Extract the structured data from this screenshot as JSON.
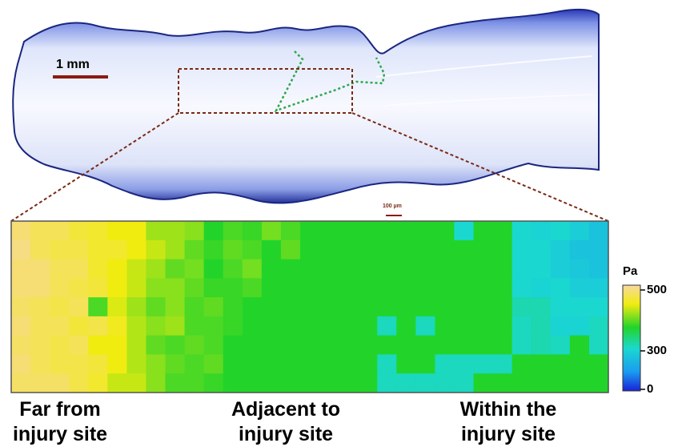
{
  "figure": {
    "scale_bar_main": "1 mm",
    "scale_bar_inset": "100 µm",
    "colorbar": {
      "unit": "Pa",
      "ticks": [
        "500",
        "300",
        "0"
      ],
      "min": 0,
      "max": 500
    },
    "region_labels": [
      {
        "line1": "Far from",
        "line2": "injury site"
      },
      {
        "line1": "Adjacent to",
        "line2": "injury site"
      },
      {
        "line1": "Within the",
        "line2": "injury site"
      }
    ],
    "heatmap": {
      "rows": 9,
      "cols": 31,
      "values": [
        [
          470,
          450,
          450,
          430,
          420,
          400,
          400,
          360,
          360,
          350,
          300,
          320,
          310,
          340,
          320,
          300,
          300,
          300,
          300,
          300,
          300,
          300,
          300,
          200,
          300,
          300,
          200,
          190,
          200,
          180,
          160
        ],
        [
          480,
          450,
          440,
          440,
          420,
          420,
          400,
          380,
          360,
          330,
          310,
          330,
          320,
          300,
          330,
          300,
          300,
          300,
          300,
          300,
          300,
          300,
          300,
          300,
          300,
          300,
          200,
          200,
          180,
          160,
          160
        ],
        [
          470,
          470,
          450,
          450,
          420,
          400,
          380,
          360,
          330,
          340,
          300,
          320,
          340,
          300,
          300,
          300,
          300,
          300,
          300,
          300,
          300,
          300,
          300,
          300,
          300,
          300,
          200,
          200,
          180,
          170,
          160
        ],
        [
          470,
          470,
          450,
          440,
          430,
          400,
          380,
          350,
          350,
          330,
          310,
          310,
          320,
          300,
          300,
          300,
          300,
          300,
          300,
          300,
          300,
          300,
          300,
          300,
          300,
          300,
          200,
          190,
          200,
          180,
          180
        ],
        [
          460,
          450,
          440,
          450,
          320,
          390,
          360,
          330,
          350,
          320,
          330,
          310,
          300,
          300,
          300,
          300,
          300,
          300,
          300,
          300,
          300,
          300,
          300,
          300,
          300,
          300,
          220,
          220,
          200,
          200,
          200
        ],
        [
          470,
          450,
          450,
          430,
          440,
          410,
          370,
          350,
          360,
          320,
          320,
          310,
          300,
          300,
          300,
          300,
          300,
          300,
          300,
          210,
          300,
          210,
          300,
          300,
          300,
          300,
          210,
          220,
          190,
          190,
          210
        ],
        [
          460,
          450,
          440,
          450,
          400,
          400,
          370,
          330,
          320,
          330,
          320,
          300,
          300,
          300,
          300,
          300,
          300,
          300,
          300,
          300,
          300,
          300,
          300,
          300,
          300,
          300,
          210,
          220,
          210,
          300,
          210
        ],
        [
          470,
          450,
          440,
          440,
          430,
          400,
          370,
          350,
          330,
          320,
          330,
          300,
          300,
          300,
          300,
          300,
          300,
          300,
          300,
          210,
          300,
          300,
          210,
          210,
          210,
          210,
          300,
          300,
          300,
          300,
          300
        ],
        [
          460,
          460,
          460,
          440,
          420,
          380,
          380,
          350,
          320,
          320,
          310,
          300,
          300,
          300,
          300,
          300,
          300,
          300,
          300,
          210,
          210,
          210,
          210,
          210,
          300,
          300,
          300,
          300,
          300,
          300,
          300
        ]
      ]
    }
  }
}
